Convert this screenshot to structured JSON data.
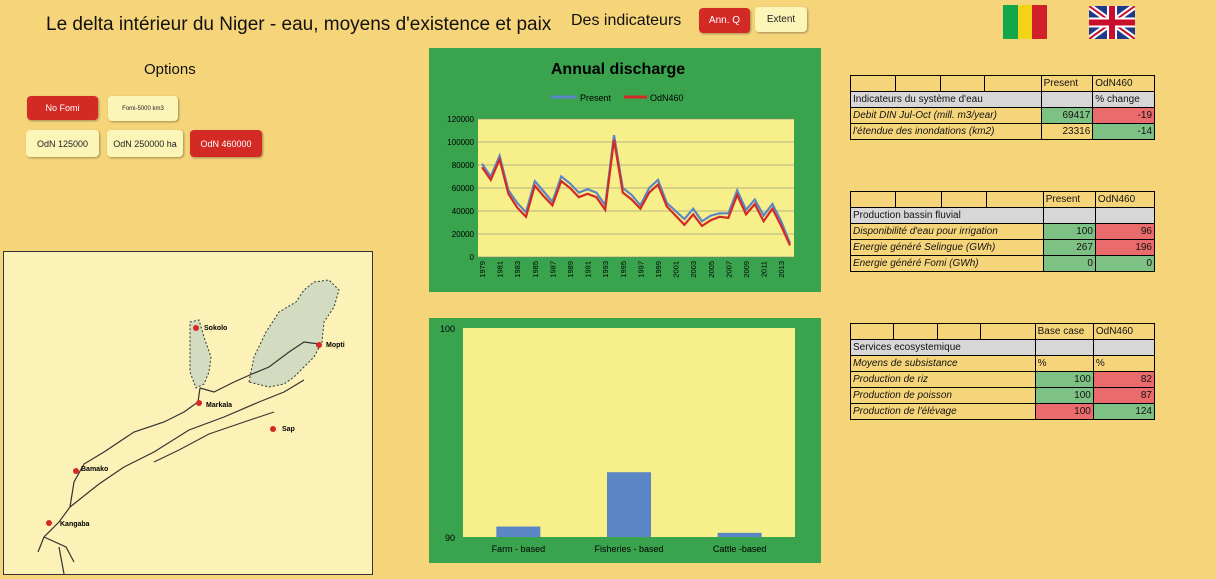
{
  "header": {
    "title": "Le delta intérieur du Niger - eau, moyens d'existence et paix",
    "indicators_label": "Des indicateurs",
    "btn_annq": "Ann. Q",
    "btn_extent": "Extent"
  },
  "options": {
    "label": "Options",
    "no_fomi": "No Fomi",
    "fomi": "Fomi-5000 km3",
    "odn125": "OdN 125000",
    "odn250": "OdN 250000 ha",
    "odn460": "OdN 460000"
  },
  "flags": {
    "mali": [
      "#14a74a",
      "#f4d215",
      "#d0202a"
    ],
    "uk": "uk-flag-icon"
  },
  "map": {
    "places": [
      "Sokolo",
      "Mopti",
      "Markala",
      "Sap",
      "Bamako",
      "Kangaba"
    ]
  },
  "chart_data": [
    {
      "type": "line",
      "title": "Annual discharge",
      "x": [
        "1979",
        "1980",
        "1981",
        "1982",
        "1983",
        "1984",
        "1985",
        "1986",
        "1987",
        "1988",
        "1989",
        "1990",
        "1991",
        "1992",
        "1993",
        "1994",
        "1995",
        "1996",
        "1997",
        "1998",
        "1999",
        "2000",
        "2001",
        "2002",
        "2003",
        "2004",
        "2005",
        "2006",
        "2007",
        "2008",
        "2009",
        "2010",
        "2011",
        "2012",
        "2013",
        "2014"
      ],
      "x_tick_labels": [
        "1979",
        "1981",
        "1983",
        "1985",
        "1987",
        "1989",
        "1991",
        "1993",
        "1995",
        "1997",
        "1999",
        "2001",
        "2003",
        "2005",
        "2007",
        "2009",
        "2011",
        "2013"
      ],
      "ylim": [
        0,
        120000
      ],
      "yticks": [
        "0",
        "20000",
        "40000",
        "60000",
        "80000",
        "100000",
        "120000"
      ],
      "legend_position": "top",
      "series": [
        {
          "name": "Present",
          "color": "#5b86c5",
          "values": [
            81000,
            70000,
            88000,
            58000,
            47000,
            39000,
            66000,
            57000,
            48000,
            70000,
            64000,
            56000,
            59000,
            56000,
            45000,
            106000,
            60000,
            54000,
            45000,
            60000,
            67000,
            47000,
            40000,
            33000,
            42000,
            31000,
            36000,
            38000,
            38000,
            58000,
            41000,
            50000,
            36000,
            46000,
            31000,
            12000
          ]
        },
        {
          "name": "OdN460",
          "color": "#d42a25",
          "values": [
            78000,
            67000,
            85000,
            55000,
            43000,
            35000,
            62000,
            53000,
            45000,
            66000,
            60000,
            52000,
            55000,
            52000,
            41000,
            102000,
            56000,
            50000,
            42000,
            56000,
            63000,
            44000,
            36000,
            28000,
            37000,
            27000,
            32000,
            35000,
            34000,
            54000,
            37000,
            46000,
            31000,
            42000,
            27000,
            10000
          ]
        }
      ]
    },
    {
      "type": "bar",
      "categories": [
        "Farm - based",
        "Fisheries - based",
        "Cattle -based"
      ],
      "ylim": [
        90,
        100
      ],
      "yticks": [
        "90",
        "100"
      ],
      "values": [
        90.5,
        93.1,
        90.2
      ],
      "color": "#5b86c5"
    }
  ],
  "table1": {
    "header": [
      "",
      "",
      "",
      "",
      "Present",
      "OdN460"
    ],
    "section": "Indicateurs du système d'eau",
    "section_col": "% change",
    "rows": [
      {
        "label": "Debit DIN Jul-Oct (mill. m3/year)",
        "present": "69417",
        "odn": "-19"
      },
      {
        "label": "l'étendue des inondations (km2)",
        "present": "23316",
        "odn": "-14"
      }
    ]
  },
  "table2": {
    "header": [
      "",
      "",
      "",
      "",
      "Present",
      "OdN460"
    ],
    "section": "Production bassin fluvial",
    "rows": [
      {
        "label": "Disponibilité d'eau pour irrigation",
        "present": "100",
        "odn": "96"
      },
      {
        "label": "Energie généré Selingue (GWh)",
        "present": "267",
        "odn": "196"
      },
      {
        "label": "Energie généré Fomi (GWh)",
        "present": "0",
        "odn": "0"
      }
    ]
  },
  "table3": {
    "header": [
      "",
      "",
      "",
      "",
      "Base case",
      "OdN460"
    ],
    "section": "Services ecosystemique",
    "sub": {
      "label": "Moyens de subsistance",
      "c1": "%",
      "c2": "%"
    },
    "rows": [
      {
        "label": "Production de riz",
        "present": "100",
        "odn": "82"
      },
      {
        "label": "Production de poisson",
        "present": "100",
        "odn": "87"
      },
      {
        "label": "Production de l'élévage",
        "present": "100",
        "odn": "124"
      }
    ]
  }
}
